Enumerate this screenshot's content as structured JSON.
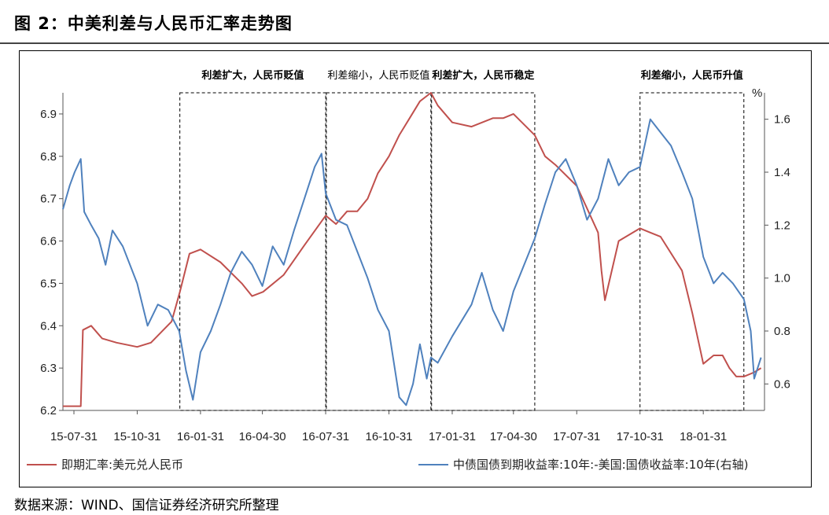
{
  "title": "图 2：中美利差与人民币汇率走势图",
  "source": "数据来源：WIND、国信证券经济研究所整理",
  "chart_data": {
    "type": "line",
    "x_tick_labels": [
      "15-07-31",
      "15-10-31",
      "16-01-31",
      "16-04-30",
      "16-07-31",
      "16-10-31",
      "17-01-31",
      "17-04-30",
      "17-07-31",
      "17-10-31",
      "18-01-31"
    ],
    "x_range": [
      "2015-07-15",
      "2018-04-30"
    ],
    "y_left": {
      "range": [
        6.2,
        6.95
      ],
      "ticks": [
        6.2,
        6.3,
        6.4,
        6.5,
        6.6,
        6.7,
        6.8,
        6.9
      ]
    },
    "y_right": {
      "unit": "%",
      "range": [
        0.5,
        1.7
      ],
      "ticks": [
        0.6,
        0.8,
        1.0,
        1.2,
        1.4,
        1.6
      ]
    },
    "series": [
      {
        "name": "即期汇率:美元兑人民币",
        "axis": "left",
        "color": "#c0504d",
        "points": [
          [
            "2015-07-15",
            6.21
          ],
          [
            "2015-08-10",
            6.21
          ],
          [
            "2015-08-13",
            6.39
          ],
          [
            "2015-08-25",
            6.4
          ],
          [
            "2015-09-10",
            6.37
          ],
          [
            "2015-10-01",
            6.36
          ],
          [
            "2015-10-31",
            6.35
          ],
          [
            "2015-11-20",
            6.36
          ],
          [
            "2015-12-20",
            6.41
          ],
          [
            "2016-01-01",
            6.48
          ],
          [
            "2016-01-15",
            6.57
          ],
          [
            "2016-01-31",
            6.58
          ],
          [
            "2016-02-29",
            6.55
          ],
          [
            "2016-03-31",
            6.5
          ],
          [
            "2016-04-15",
            6.47
          ],
          [
            "2016-05-01",
            6.48
          ],
          [
            "2016-05-31",
            6.52
          ],
          [
            "2016-06-30",
            6.59
          ],
          [
            "2016-07-31",
            6.66
          ],
          [
            "2016-08-15",
            6.64
          ],
          [
            "2016-08-31",
            6.67
          ],
          [
            "2016-09-15",
            6.67
          ],
          [
            "2016-09-30",
            6.7
          ],
          [
            "2016-10-15",
            6.76
          ],
          [
            "2016-10-31",
            6.8
          ],
          [
            "2016-11-15",
            6.85
          ],
          [
            "2016-11-30",
            6.89
          ],
          [
            "2016-12-15",
            6.93
          ],
          [
            "2016-12-31",
            6.95
          ],
          [
            "2017-01-10",
            6.92
          ],
          [
            "2017-01-31",
            6.88
          ],
          [
            "2017-02-28",
            6.87
          ],
          [
            "2017-03-31",
            6.89
          ],
          [
            "2017-04-15",
            6.89
          ],
          [
            "2017-04-30",
            6.9
          ],
          [
            "2017-05-31",
            6.85
          ],
          [
            "2017-06-15",
            6.8
          ],
          [
            "2017-06-30",
            6.78
          ],
          [
            "2017-07-31",
            6.73
          ],
          [
            "2017-08-31",
            6.62
          ],
          [
            "2017-09-05",
            6.53
          ],
          [
            "2017-09-10",
            6.46
          ],
          [
            "2017-09-30",
            6.6
          ],
          [
            "2017-10-31",
            6.63
          ],
          [
            "2017-11-15",
            6.62
          ],
          [
            "2017-11-30",
            6.61
          ],
          [
            "2017-12-31",
            6.53
          ],
          [
            "2018-01-15",
            6.43
          ],
          [
            "2018-01-31",
            6.31
          ],
          [
            "2018-02-15",
            6.33
          ],
          [
            "2018-02-28",
            6.33
          ],
          [
            "2018-03-10",
            6.3
          ],
          [
            "2018-03-20",
            6.28
          ],
          [
            "2018-03-31",
            6.28
          ],
          [
            "2018-04-15",
            6.29
          ],
          [
            "2018-04-25",
            6.3
          ]
        ]
      },
      {
        "name": "中债国债到期收益率:10年:-美国:国债收益率:10年(右轴)",
        "axis": "right",
        "color": "#4f81bd",
        "points": [
          [
            "2015-07-15",
            1.26
          ],
          [
            "2015-07-25",
            1.35
          ],
          [
            "2015-08-01",
            1.4
          ],
          [
            "2015-08-10",
            1.45
          ],
          [
            "2015-08-15",
            1.25
          ],
          [
            "2015-08-25",
            1.2
          ],
          [
            "2015-09-05",
            1.15
          ],
          [
            "2015-09-15",
            1.05
          ],
          [
            "2015-09-25",
            1.18
          ],
          [
            "2015-10-10",
            1.12
          ],
          [
            "2015-10-31",
            0.98
          ],
          [
            "2015-11-15",
            0.82
          ],
          [
            "2015-11-30",
            0.9
          ],
          [
            "2015-12-15",
            0.88
          ],
          [
            "2015-12-31",
            0.8
          ],
          [
            "2016-01-10",
            0.65
          ],
          [
            "2016-01-20",
            0.54
          ],
          [
            "2016-01-31",
            0.72
          ],
          [
            "2016-02-15",
            0.8
          ],
          [
            "2016-02-29",
            0.9
          ],
          [
            "2016-03-15",
            1.02
          ],
          [
            "2016-03-31",
            1.1
          ],
          [
            "2016-04-15",
            1.05
          ],
          [
            "2016-04-30",
            0.97
          ],
          [
            "2016-05-15",
            1.12
          ],
          [
            "2016-05-31",
            1.05
          ],
          [
            "2016-06-15",
            1.18
          ],
          [
            "2016-06-30",
            1.3
          ],
          [
            "2016-07-15",
            1.42
          ],
          [
            "2016-07-25",
            1.47
          ],
          [
            "2016-07-31",
            1.32
          ],
          [
            "2016-08-15",
            1.22
          ],
          [
            "2016-08-31",
            1.2
          ],
          [
            "2016-09-15",
            1.1
          ],
          [
            "2016-09-30",
            1.0
          ],
          [
            "2016-10-15",
            0.88
          ],
          [
            "2016-10-31",
            0.8
          ],
          [
            "2016-11-15",
            0.55
          ],
          [
            "2016-11-25",
            0.52
          ],
          [
            "2016-12-05",
            0.6
          ],
          [
            "2016-12-15",
            0.75
          ],
          [
            "2016-12-25",
            0.62
          ],
          [
            "2016-12-31",
            0.7
          ],
          [
            "2017-01-10",
            0.68
          ],
          [
            "2017-01-31",
            0.78
          ],
          [
            "2017-02-28",
            0.9
          ],
          [
            "2017-03-15",
            1.02
          ],
          [
            "2017-03-31",
            0.88
          ],
          [
            "2017-04-15",
            0.8
          ],
          [
            "2017-04-30",
            0.95
          ],
          [
            "2017-05-31",
            1.15
          ],
          [
            "2017-06-15",
            1.28
          ],
          [
            "2017-06-30",
            1.4
          ],
          [
            "2017-07-15",
            1.45
          ],
          [
            "2017-07-31",
            1.35
          ],
          [
            "2017-08-15",
            1.22
          ],
          [
            "2017-08-31",
            1.3
          ],
          [
            "2017-09-15",
            1.45
          ],
          [
            "2017-09-30",
            1.35
          ],
          [
            "2017-10-15",
            1.4
          ],
          [
            "2017-10-31",
            1.42
          ],
          [
            "2017-11-15",
            1.6
          ],
          [
            "2017-11-30",
            1.55
          ],
          [
            "2017-12-15",
            1.5
          ],
          [
            "2017-12-31",
            1.4
          ],
          [
            "2018-01-15",
            1.3
          ],
          [
            "2018-01-31",
            1.08
          ],
          [
            "2018-02-15",
            0.98
          ],
          [
            "2018-02-28",
            1.02
          ],
          [
            "2018-03-15",
            0.98
          ],
          [
            "2018-03-31",
            0.92
          ],
          [
            "2018-04-10",
            0.8
          ],
          [
            "2018-04-15",
            0.62
          ],
          [
            "2018-04-25",
            0.7
          ]
        ]
      }
    ],
    "annotations": [
      {
        "text": "利差扩大，人民币贬值",
        "bold": true,
        "box": [
          "2016-01-01",
          "2016-07-31"
        ]
      },
      {
        "text": "利差缩小，人民币贬值",
        "bold": false,
        "box": [
          "2016-08-01",
          "2016-12-31"
        ]
      },
      {
        "text": "利差扩大，人民币稳定",
        "bold": true,
        "box": [
          "2017-01-01",
          "2017-05-31"
        ]
      },
      {
        "text": "利差缩小，人民币升值",
        "bold": true,
        "box": [
          "2017-10-31",
          "2018-03-31"
        ]
      }
    ],
    "legend_position": "bottom",
    "grid": false
  }
}
